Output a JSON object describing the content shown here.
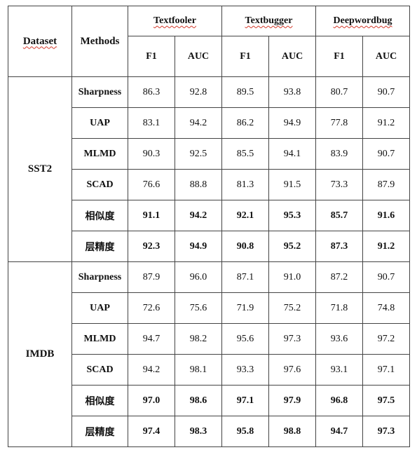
{
  "header": {
    "dataset": "Dataset",
    "methods": "Methods",
    "attacks": [
      "Textfooler",
      "Textbugger",
      "Deepwordbug"
    ],
    "metrics": [
      "F1",
      "AUC",
      "F1",
      "AUC",
      "F1",
      "AUC"
    ]
  },
  "groups": [
    {
      "name": "SST2",
      "rows": [
        {
          "method": "Sharpness",
          "values": [
            "86.3",
            "92.8",
            "89.5",
            "93.8",
            "80.7",
            "90.7"
          ],
          "bold": false
        },
        {
          "method": "UAP",
          "values": [
            "83.1",
            "94.2",
            "86.2",
            "94.9",
            "77.8",
            "91.2"
          ],
          "bold": false
        },
        {
          "method": "MLMD",
          "values": [
            "90.3",
            "92.5",
            "85.5",
            "94.1",
            "83.9",
            "90.7"
          ],
          "bold": false
        },
        {
          "method": "SCAD",
          "values": [
            "76.6",
            "88.8",
            "81.3",
            "91.5",
            "73.3",
            "87.9"
          ],
          "bold": false
        },
        {
          "method": "相似度",
          "values": [
            "91.1",
            "94.2",
            "92.1",
            "95.3",
            "85.7",
            "91.6"
          ],
          "bold": true
        },
        {
          "method": "层精度",
          "values": [
            "92.3",
            "94.9",
            "90.8",
            "95.2",
            "87.3",
            "91.2"
          ],
          "bold": true
        }
      ]
    },
    {
      "name": "IMDB",
      "rows": [
        {
          "method": "Sharpness",
          "values": [
            "87.9",
            "96.0",
            "87.1",
            "91.0",
            "87.2",
            "90.7"
          ],
          "bold": false
        },
        {
          "method": "UAP",
          "values": [
            "72.6",
            "75.6",
            "71.9",
            "75.2",
            "71.8",
            "74.8"
          ],
          "bold": false
        },
        {
          "method": "MLMD",
          "values": [
            "94.7",
            "98.2",
            "95.6",
            "97.3",
            "93.6",
            "97.2"
          ],
          "bold": false
        },
        {
          "method": "SCAD",
          "values": [
            "94.2",
            "98.1",
            "93.3",
            "97.6",
            "93.1",
            "97.1"
          ],
          "bold": false
        },
        {
          "method": "相似度",
          "values": [
            "97.0",
            "98.6",
            "97.1",
            "97.9",
            "96.8",
            "97.5"
          ],
          "bold": true
        },
        {
          "method": "层精度",
          "values": [
            "97.4",
            "98.3",
            "95.8",
            "98.8",
            "94.7",
            "97.3"
          ],
          "bold": true
        }
      ]
    }
  ]
}
